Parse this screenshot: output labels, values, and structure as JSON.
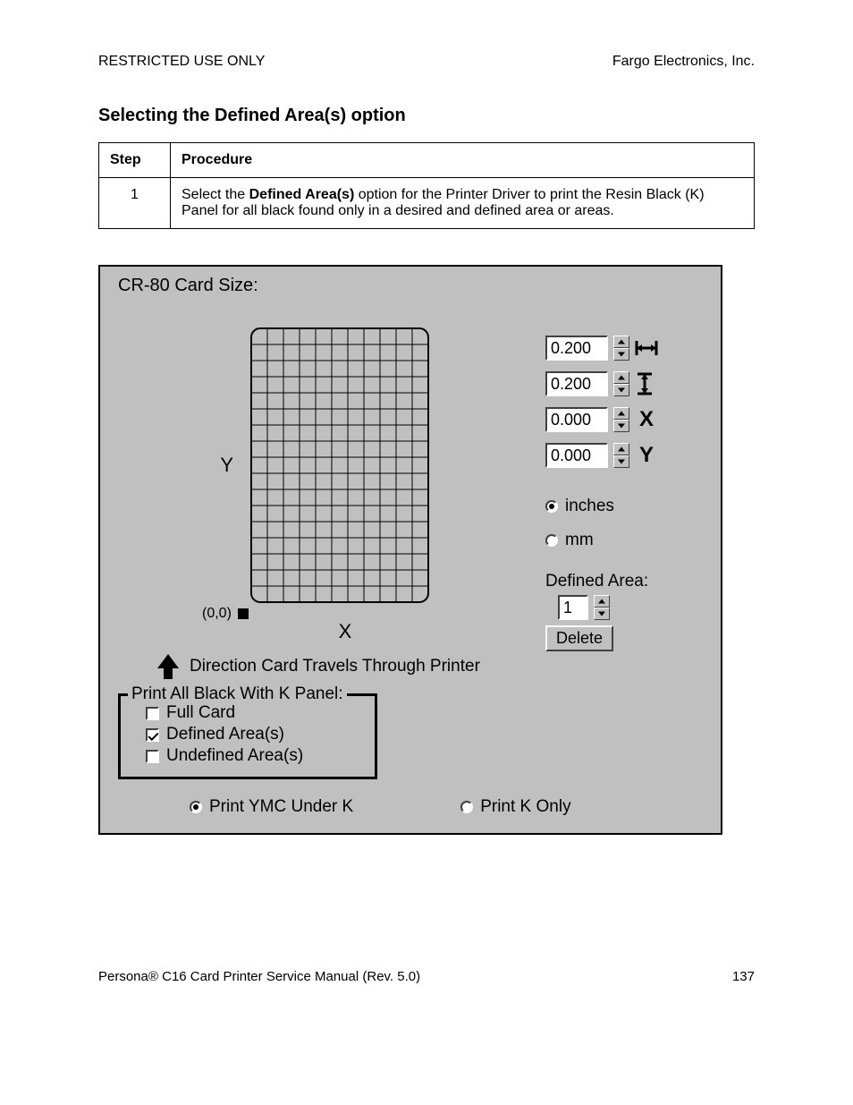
{
  "header": {
    "left": "RESTRICTED USE ONLY",
    "right": "Fargo Electronics, Inc."
  },
  "footer": {
    "left_prefix": "Persona",
    "reg": "®",
    "left_suffix": " C16 Card Printer Service Manual (Rev. 5.0)",
    "page_num": "137"
  },
  "section_title": "Selecting the Defined Area(s) option",
  "table": {
    "headers": {
      "step": "Step",
      "procedure": "Procedure"
    },
    "rows": [
      {
        "step": "1",
        "proc_prefix": "Select the ",
        "proc_bold": "Defined Area(s)",
        "proc_suffix": " option for the Printer Driver to print the Resin Black (K) Panel for all black found only in a desired and defined area or areas."
      }
    ]
  },
  "dlg": {
    "title": "CR-80 Card Size:",
    "axis": {
      "x": "X",
      "y": "Y",
      "origin": "(0,0)"
    },
    "direction_text": "Direction Card Travels Through Printer",
    "spinners": {
      "width": {
        "value": "0.200",
        "icon": "↔"
      },
      "height": {
        "value": "0.200",
        "icon": "↕"
      },
      "x": {
        "value": "0.000",
        "icon": "X"
      },
      "y": {
        "value": "0.000",
        "icon": "Y"
      }
    },
    "units": {
      "inches": {
        "label": "inches",
        "checked": true
      },
      "mm": {
        "label": "mm",
        "checked": false
      }
    },
    "defined_area": {
      "label": "Defined Area:",
      "value": "1",
      "delete": "Delete"
    },
    "groupbox": {
      "title": "Print All Black With K Panel:",
      "items": {
        "full": {
          "label": "Full Card",
          "checked": false
        },
        "defined": {
          "label": "Defined Area(s)",
          "checked": true
        },
        "undef": {
          "label": "Undefined Area(s)",
          "checked": false
        }
      }
    },
    "bottom": {
      "ymc": {
        "label": "Print YMC Under K",
        "checked": true
      },
      "konly": {
        "label": "Print K Only",
        "checked": false
      }
    },
    "grid": {
      "cols": 11,
      "rows": 17,
      "cell": 18,
      "card_corner_radius": 10,
      "stroke": "#000000",
      "stroke_width": 1,
      "bg": "#c0c0c0"
    }
  }
}
